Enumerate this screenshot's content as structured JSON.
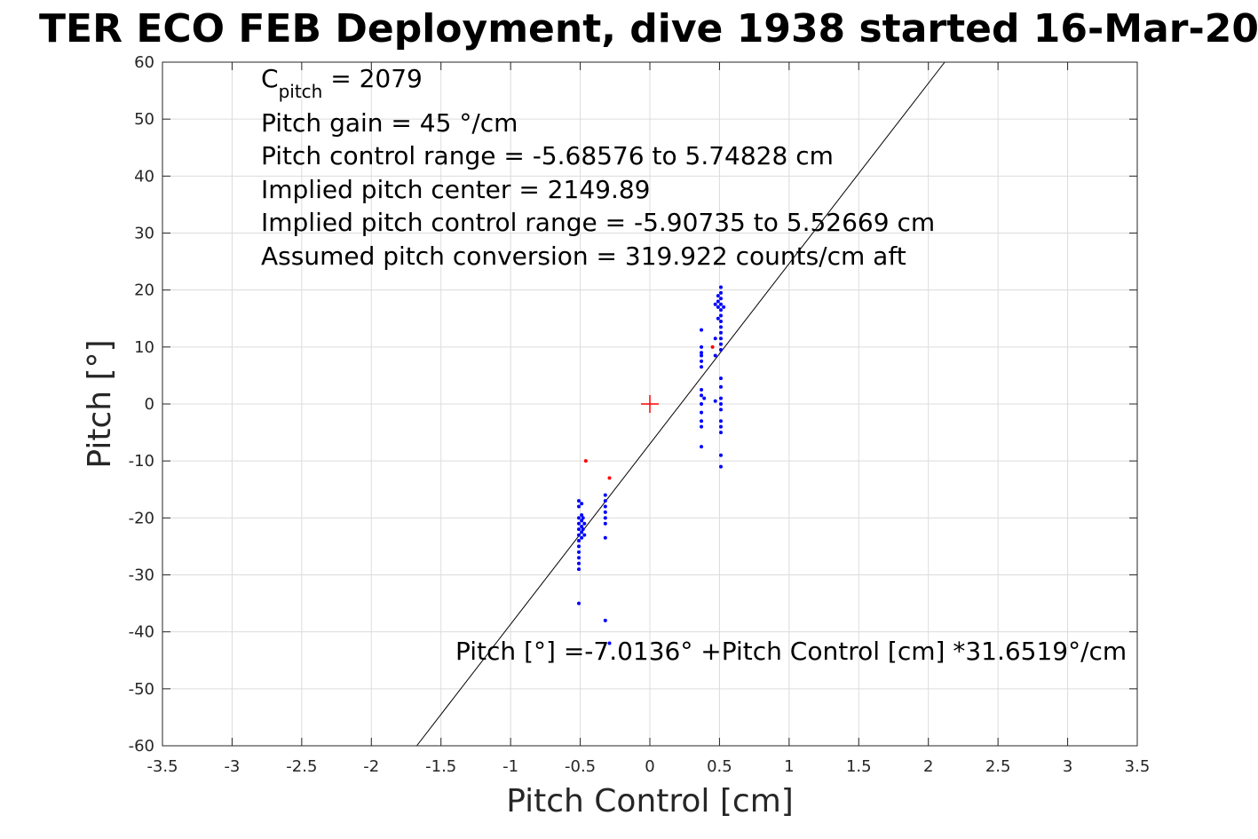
{
  "chart_data": {
    "type": "scatter",
    "title": "TER ECO FEB Deployment, dive 1938 started 16-Mar-20",
    "xlabel": "Pitch Control [cm]",
    "ylabel": "Pitch [°]",
    "xlim": [
      -3.5,
      3.5
    ],
    "ylim": [
      -60,
      60
    ],
    "xticks": [
      -3.5,
      -3,
      -2.5,
      -2,
      -1.5,
      -1,
      -0.5,
      0,
      0.5,
      1,
      1.5,
      2,
      2.5,
      3,
      3.5
    ],
    "xtick_labels": [
      "-3.5",
      "-3",
      "-2.5",
      "-2",
      "-1.5",
      "-1",
      "-0.5",
      "0",
      "0.5",
      "1",
      "1.5",
      "2",
      "2.5",
      "3",
      "3.5"
    ],
    "yticks": [
      -60,
      -50,
      -40,
      -30,
      -20,
      -10,
      0,
      10,
      20,
      30,
      40,
      50,
      60
    ],
    "ytick_labels": [
      "-60",
      "-50",
      "-40",
      "-30",
      "-20",
      "-10",
      "0",
      "10",
      "20",
      "30",
      "40",
      "50",
      "60"
    ],
    "grid": true,
    "colors": {
      "used": "#0000ff",
      "excluded": "#ff0000",
      "fit": "#000000",
      "center": "#ff0000"
    },
    "annotations": {
      "c_pitch_base": "C",
      "c_pitch_sub": "pitch",
      "c_pitch_rest": " = 2079",
      "lines": [
        "Pitch gain = 45 °/cm",
        "Pitch control range = -5.68576 to 5.74828 cm",
        "Implied pitch center = 2149.89",
        "Implied pitch control range = -5.90735 to 5.52669 cm",
        "Assumed pitch conversion = 319.922 counts/cm aft"
      ],
      "fit_equation": "Pitch [°] =-7.0136° +Pitch Control [cm] *31.6519°/cm"
    },
    "fit": {
      "intercept": -7.0136,
      "slope": 31.6519
    },
    "center_marker": {
      "x": 0,
      "y": 0
    },
    "series": [
      {
        "role": "used",
        "points": [
          [
            -0.51,
            -17
          ],
          [
            -0.51,
            -18
          ],
          [
            -0.51,
            -20
          ],
          [
            -0.51,
            -21
          ],
          [
            -0.51,
            -22
          ],
          [
            -0.51,
            -23
          ],
          [
            -0.51,
            -24
          ],
          [
            -0.51,
            -25
          ],
          [
            -0.51,
            -26
          ],
          [
            -0.51,
            -27
          ],
          [
            -0.51,
            -28
          ],
          [
            -0.51,
            -29
          ],
          [
            -0.51,
            -35
          ],
          [
            -0.49,
            -17.5
          ],
          [
            -0.49,
            -19.5
          ],
          [
            -0.49,
            -20.5
          ],
          [
            -0.49,
            -21.5
          ],
          [
            -0.49,
            -22.5
          ],
          [
            -0.49,
            -23.5
          ],
          [
            -0.48,
            -20
          ],
          [
            -0.48,
            -22
          ],
          [
            -0.47,
            -21
          ],
          [
            -0.47,
            -23
          ],
          [
            -0.32,
            -16
          ],
          [
            -0.32,
            -17
          ],
          [
            -0.32,
            -18
          ],
          [
            -0.32,
            -19
          ],
          [
            -0.32,
            -20
          ],
          [
            -0.32,
            -21
          ],
          [
            -0.32,
            -23.5
          ],
          [
            -0.32,
            -38
          ],
          [
            -0.29,
            -42
          ],
          [
            0.37,
            13
          ],
          [
            0.37,
            10
          ],
          [
            0.37,
            9
          ],
          [
            0.37,
            8.5
          ],
          [
            0.37,
            7.5
          ],
          [
            0.37,
            6.5
          ],
          [
            0.37,
            2.5
          ],
          [
            0.37,
            1.5
          ],
          [
            0.37,
            0
          ],
          [
            0.37,
            -1.5
          ],
          [
            0.37,
            -3
          ],
          [
            0.37,
            -4
          ],
          [
            0.37,
            -7.5
          ],
          [
            0.39,
            1
          ],
          [
            0.47,
            17.5
          ],
          [
            0.47,
            11.5
          ],
          [
            0.47,
            8.5
          ],
          [
            0.47,
            0.5
          ],
          [
            0.49,
            19
          ],
          [
            0.49,
            18
          ],
          [
            0.49,
            17
          ],
          [
            0.49,
            15
          ],
          [
            0.51,
            20.5
          ],
          [
            0.51,
            19.5
          ],
          [
            0.51,
            18.5
          ],
          [
            0.51,
            17.5
          ],
          [
            0.51,
            16.5
          ],
          [
            0.51,
            15.5
          ],
          [
            0.51,
            14.5
          ],
          [
            0.51,
            13.5
          ],
          [
            0.51,
            12.5
          ],
          [
            0.51,
            11.5
          ],
          [
            0.51,
            10.5
          ],
          [
            0.51,
            9.5
          ],
          [
            0.51,
            4.5
          ],
          [
            0.51,
            3
          ],
          [
            0.51,
            1
          ],
          [
            0.51,
            0
          ],
          [
            0.51,
            -1
          ],
          [
            0.51,
            -3
          ],
          [
            0.51,
            -4
          ],
          [
            0.51,
            -5
          ],
          [
            0.51,
            -9
          ],
          [
            0.51,
            -11
          ],
          [
            0.53,
            17
          ]
        ]
      },
      {
        "role": "excluded",
        "points": [
          [
            -0.46,
            -10
          ],
          [
            -0.29,
            -13
          ],
          [
            0.45,
            10
          ]
        ]
      }
    ]
  }
}
